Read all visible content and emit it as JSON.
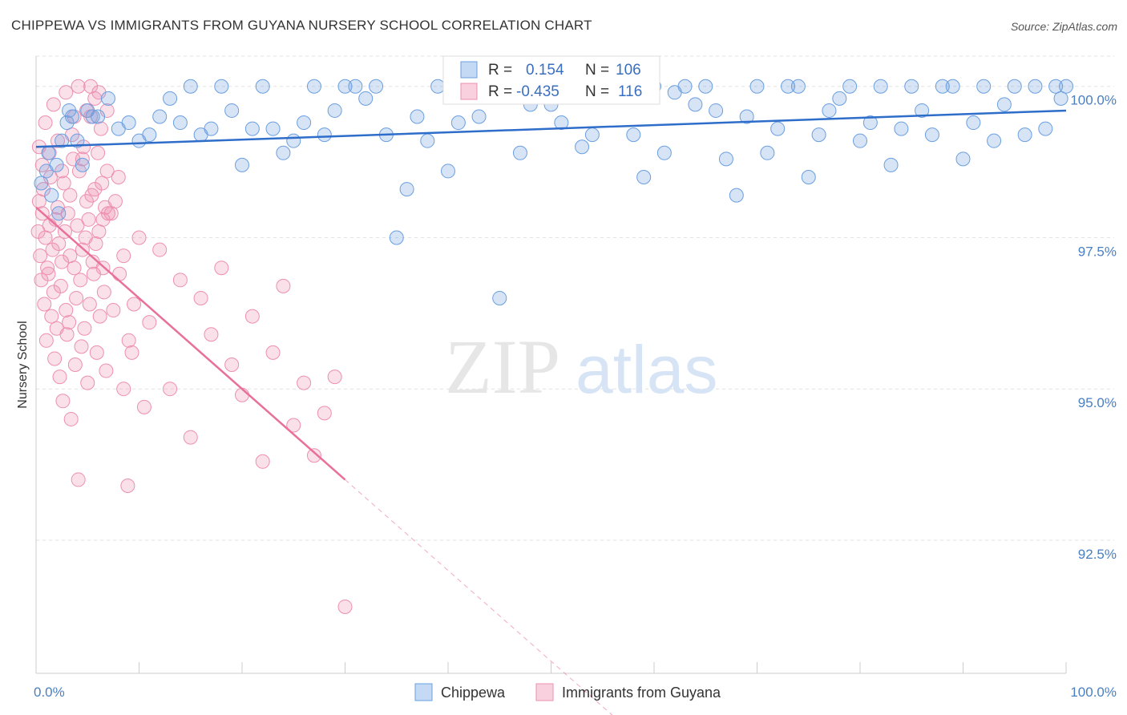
{
  "header": {
    "title": "CHIPPEWA VS IMMIGRANTS FROM GUYANA NURSERY SCHOOL CORRELATION CHART",
    "source": "Source: ZipAtlas.com"
  },
  "watermark": {
    "zip": "ZIP",
    "atlas": "atlas"
  },
  "legend": {
    "r_label": "R =",
    "n_label": "N =",
    "rows": [
      {
        "r": "0.154",
        "n": "106"
      },
      {
        "r": "-0.435",
        "n": "116"
      }
    ]
  },
  "chart_data": {
    "type": "scatter",
    "title": "CHIPPEWA VS IMMIGRANTS FROM GUYANA NURSERY SCHOOL CORRELATION CHART",
    "xlabel": "",
    "ylabel": "Nursery School",
    "xlim": [
      0,
      100
    ],
    "ylim": [
      90.3,
      100.5
    ],
    "x_tick_labels": [
      "0.0%",
      "100.0%"
    ],
    "y_ticks": [
      100.0,
      97.5,
      95.0,
      92.5
    ],
    "y_tick_labels": [
      "100.0%",
      "97.5%",
      "95.0%",
      "92.5%"
    ],
    "colors": {
      "blue": "#6b9fe0",
      "pink": "#ee8fb0",
      "blue_line": "#2e6dc9",
      "pink_line": "#e8709a"
    },
    "series": [
      {
        "name": "Chippewa",
        "r": 0.154,
        "n": 106,
        "trend": {
          "x0": 0,
          "y0": 99.0,
          "x1": 100,
          "y1": 99.6
        },
        "points": [
          [
            0.5,
            98.4
          ],
          [
            1.0,
            98.6
          ],
          [
            1.5,
            98.2
          ],
          [
            2.0,
            98.7
          ],
          [
            2.5,
            99.1
          ],
          [
            3.0,
            99.4
          ],
          [
            3.5,
            99.5
          ],
          [
            4.0,
            99.1
          ],
          [
            4.5,
            98.7
          ],
          [
            5.0,
            99.6
          ],
          [
            5.5,
            99.5
          ],
          [
            6.0,
            99.5
          ],
          [
            7.0,
            99.8
          ],
          [
            8.0,
            99.3
          ],
          [
            9.0,
            99.4
          ],
          [
            10.0,
            99.1
          ],
          [
            11.0,
            99.2
          ],
          [
            12.0,
            99.5
          ],
          [
            13.0,
            99.8
          ],
          [
            14.0,
            99.4
          ],
          [
            15.0,
            100.0
          ],
          [
            16.0,
            99.2
          ],
          [
            17.0,
            99.3
          ],
          [
            18.0,
            100.0
          ],
          [
            19.0,
            99.6
          ],
          [
            20.0,
            98.7
          ],
          [
            21.0,
            99.3
          ],
          [
            22.0,
            100.0
          ],
          [
            23.0,
            99.3
          ],
          [
            24.0,
            98.9
          ],
          [
            25.0,
            99.1
          ],
          [
            26.0,
            99.4
          ],
          [
            27.0,
            100.0
          ],
          [
            28.0,
            99.2
          ],
          [
            29.0,
            99.6
          ],
          [
            30.0,
            100.0
          ],
          [
            31.0,
            100.0
          ],
          [
            32.0,
            99.8
          ],
          [
            33.0,
            100.0
          ],
          [
            34.0,
            99.2
          ],
          [
            35.0,
            97.5
          ],
          [
            36.0,
            98.3
          ],
          [
            37.0,
            99.5
          ],
          [
            38.0,
            99.1
          ],
          [
            39.0,
            100.0
          ],
          [
            40.0,
            98.6
          ],
          [
            41.0,
            99.4
          ],
          [
            42.0,
            100.0
          ],
          [
            43.0,
            99.5
          ],
          [
            44.0,
            100.0
          ],
          [
            45.0,
            96.5
          ],
          [
            46.0,
            100.0
          ],
          [
            47.0,
            98.9
          ],
          [
            48.0,
            99.7
          ],
          [
            49.0,
            100.0
          ],
          [
            50.0,
            99.7
          ],
          [
            51.0,
            99.4
          ],
          [
            52.0,
            100.0
          ],
          [
            53.0,
            99.0
          ],
          [
            54.0,
            99.2
          ],
          [
            55.0,
            100.0
          ],
          [
            56.0,
            99.9
          ],
          [
            57.0,
            100.0
          ],
          [
            58.0,
            99.2
          ],
          [
            59.0,
            98.5
          ],
          [
            60.0,
            100.0
          ],
          [
            61.0,
            98.9
          ],
          [
            62.0,
            99.9
          ],
          [
            63.0,
            100.0
          ],
          [
            64.0,
            99.7
          ],
          [
            65.0,
            100.0
          ],
          [
            66.0,
            99.6
          ],
          [
            67.0,
            98.8
          ],
          [
            68.0,
            98.2
          ],
          [
            69.0,
            99.5
          ],
          [
            70.0,
            100.0
          ],
          [
            71.0,
            98.9
          ],
          [
            72.0,
            99.3
          ],
          [
            73.0,
            100.0
          ],
          [
            74.0,
            100.0
          ],
          [
            75.0,
            98.5
          ],
          [
            76.0,
            99.2
          ],
          [
            77.0,
            99.6
          ],
          [
            78.0,
            99.8
          ],
          [
            79.0,
            100.0
          ],
          [
            80.0,
            99.1
          ],
          [
            81.0,
            99.4
          ],
          [
            82.0,
            100.0
          ],
          [
            83.0,
            98.7
          ],
          [
            84.0,
            99.3
          ],
          [
            85.0,
            100.0
          ],
          [
            86.0,
            99.6
          ],
          [
            87.0,
            99.2
          ],
          [
            88.0,
            100.0
          ],
          [
            89.0,
            100.0
          ],
          [
            90.0,
            98.8
          ],
          [
            91.0,
            99.4
          ],
          [
            92.0,
            100.0
          ],
          [
            93.0,
            99.1
          ],
          [
            94.0,
            99.7
          ],
          [
            95.0,
            100.0
          ],
          [
            96.0,
            99.2
          ],
          [
            97.0,
            100.0
          ],
          [
            98.0,
            99.3
          ],
          [
            99.0,
            100.0
          ],
          [
            99.5,
            99.8
          ],
          [
            100.0,
            100.0
          ],
          [
            1.2,
            98.9
          ],
          [
            2.2,
            97.9
          ],
          [
            3.2,
            99.6
          ]
        ]
      },
      {
        "name": "Immigrants from Guyana",
        "r": -0.435,
        "n": 116,
        "trend": {
          "x0": 0,
          "y0": 98.0,
          "x1": 30,
          "y1": 93.5,
          "dash_x1": 56,
          "dash_y1": 89.6
        },
        "points": [
          [
            0.2,
            97.6
          ],
          [
            0.3,
            98.1
          ],
          [
            0.4,
            97.2
          ],
          [
            0.5,
            96.8
          ],
          [
            0.6,
            97.9
          ],
          [
            0.7,
            98.3
          ],
          [
            0.8,
            96.4
          ],
          [
            0.9,
            97.5
          ],
          [
            1.0,
            95.8
          ],
          [
            1.1,
            97.0
          ],
          [
            1.2,
            96.9
          ],
          [
            1.3,
            97.7
          ],
          [
            1.4,
            98.5
          ],
          [
            1.5,
            96.2
          ],
          [
            1.6,
            97.3
          ],
          [
            1.7,
            96.6
          ],
          [
            1.8,
            95.5
          ],
          [
            1.9,
            97.8
          ],
          [
            2.0,
            96.0
          ],
          [
            2.1,
            98.0
          ],
          [
            2.2,
            97.4
          ],
          [
            2.3,
            95.2
          ],
          [
            2.4,
            96.7
          ],
          [
            2.5,
            97.1
          ],
          [
            2.6,
            94.8
          ],
          [
            2.7,
            98.4
          ],
          [
            2.8,
            97.6
          ],
          [
            2.9,
            96.3
          ],
          [
            3.0,
            95.9
          ],
          [
            3.1,
            97.9
          ],
          [
            3.2,
            96.1
          ],
          [
            3.3,
            97.2
          ],
          [
            3.4,
            94.5
          ],
          [
            3.5,
            99.2
          ],
          [
            3.6,
            98.8
          ],
          [
            3.7,
            97.0
          ],
          [
            3.8,
            95.4
          ],
          [
            3.9,
            96.5
          ],
          [
            4.0,
            97.7
          ],
          [
            4.1,
            93.5
          ],
          [
            4.2,
            98.6
          ],
          [
            4.3,
            96.8
          ],
          [
            4.4,
            95.7
          ],
          [
            4.5,
            97.3
          ],
          [
            4.6,
            99.0
          ],
          [
            4.7,
            96.0
          ],
          [
            4.8,
            97.5
          ],
          [
            4.9,
            98.1
          ],
          [
            5.0,
            95.1
          ],
          [
            5.1,
            97.8
          ],
          [
            5.2,
            96.4
          ],
          [
            5.3,
            99.5
          ],
          [
            5.4,
            98.2
          ],
          [
            5.5,
            97.1
          ],
          [
            5.6,
            96.9
          ],
          [
            5.7,
            99.8
          ],
          [
            5.8,
            97.4
          ],
          [
            5.9,
            95.6
          ],
          [
            6.0,
            98.9
          ],
          [
            6.1,
            97.6
          ],
          [
            6.2,
            96.2
          ],
          [
            6.3,
            99.3
          ],
          [
            6.4,
            98.4
          ],
          [
            6.5,
            97.0
          ],
          [
            6.6,
            96.6
          ],
          [
            6.7,
            98.0
          ],
          [
            6.8,
            95.3
          ],
          [
            6.9,
            99.6
          ],
          [
            7.0,
            97.9
          ],
          [
            7.5,
            96.3
          ],
          [
            8.0,
            98.5
          ],
          [
            8.5,
            97.2
          ],
          [
            9.0,
            95.8
          ],
          [
            9.5,
            96.4
          ],
          [
            10.0,
            97.5
          ],
          [
            10.5,
            94.7
          ],
          [
            11.0,
            96.1
          ],
          [
            12.0,
            97.3
          ],
          [
            13.0,
            95.0
          ],
          [
            14.0,
            96.8
          ],
          [
            15.0,
            94.2
          ],
          [
            16.0,
            96.5
          ],
          [
            17.0,
            95.9
          ],
          [
            18.0,
            97.0
          ],
          [
            19.0,
            95.4
          ],
          [
            20.0,
            94.9
          ],
          [
            21.0,
            96.2
          ],
          [
            22.0,
            93.8
          ],
          [
            23.0,
            95.6
          ],
          [
            24.0,
            96.7
          ],
          [
            25.0,
            94.4
          ],
          [
            26.0,
            95.1
          ],
          [
            27.0,
            93.9
          ],
          [
            28.0,
            94.6
          ],
          [
            29.0,
            95.2
          ],
          [
            30.0,
            91.4
          ],
          [
            0.3,
            99.0
          ],
          [
            0.6,
            98.7
          ],
          [
            0.9,
            99.4
          ],
          [
            1.3,
            98.9
          ],
          [
            1.7,
            99.7
          ],
          [
            2.1,
            99.1
          ],
          [
            2.5,
            98.6
          ],
          [
            2.9,
            99.9
          ],
          [
            3.3,
            98.2
          ],
          [
            3.7,
            99.5
          ],
          [
            4.1,
            100.0
          ],
          [
            4.5,
            98.8
          ],
          [
            4.9,
            99.6
          ],
          [
            5.3,
            100.0
          ],
          [
            5.7,
            98.3
          ],
          [
            6.1,
            99.9
          ],
          [
            6.5,
            97.8
          ],
          [
            6.9,
            98.6
          ],
          [
            7.3,
            97.9
          ],
          [
            7.7,
            98.1
          ],
          [
            8.1,
            96.9
          ],
          [
            8.5,
            95.0
          ],
          [
            8.9,
            93.4
          ],
          [
            9.3,
            95.6
          ]
        ]
      }
    ]
  },
  "bottom_legend": [
    {
      "label": "Chippewa"
    },
    {
      "label": "Immigrants from Guyana"
    }
  ]
}
